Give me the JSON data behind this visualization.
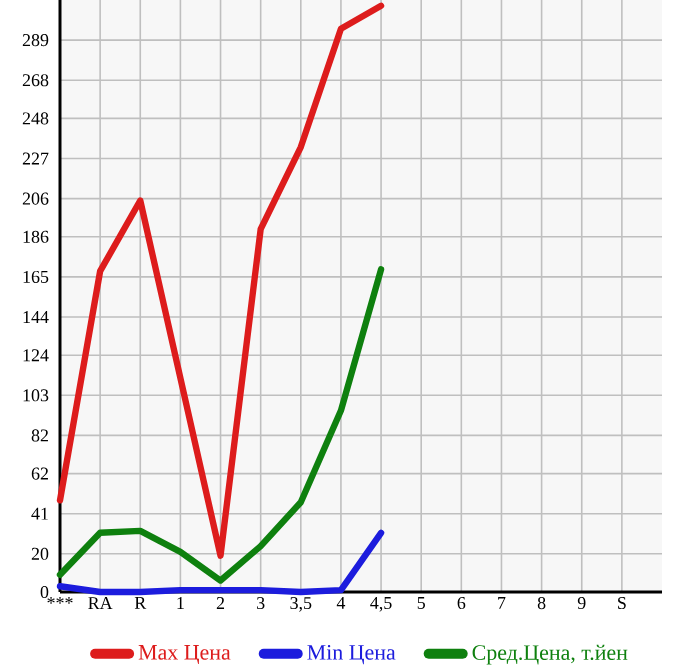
{
  "chart_data": {
    "type": "line",
    "categories": [
      "***",
      "RA",
      "R",
      "1",
      "2",
      "3",
      "3,5",
      "4",
      "4,5",
      "5",
      "6",
      "7",
      "8",
      "9",
      "S"
    ],
    "series": [
      {
        "name": "Max Цена",
        "color": "#dd1c1c",
        "values": [
          48,
          168,
          205,
          112,
          19,
          190,
          233,
          295,
          307,
          null,
          null,
          null,
          null,
          null,
          null
        ]
      },
      {
        "name": "Min Цена",
        "color": "#1c1cdd",
        "values": [
          3,
          0,
          0,
          1,
          1,
          1,
          0,
          1,
          31,
          null,
          null,
          null,
          null,
          null,
          null
        ]
      },
      {
        "name": "Сред.Цена, т.йен",
        "color": "#0e800e",
        "values": [
          9,
          31,
          32,
          21,
          6,
          24,
          47,
          95,
          169,
          null,
          null,
          null,
          null,
          null,
          null
        ]
      }
    ],
    "ylim": [
      0,
      310
    ],
    "yticks": [
      0,
      20,
      41,
      62,
      82,
      103,
      124,
      144,
      165,
      186,
      206,
      227,
      248,
      268,
      289
    ],
    "grid": true,
    "legend": "bottom",
    "marker": "none",
    "line_style": "solid"
  }
}
